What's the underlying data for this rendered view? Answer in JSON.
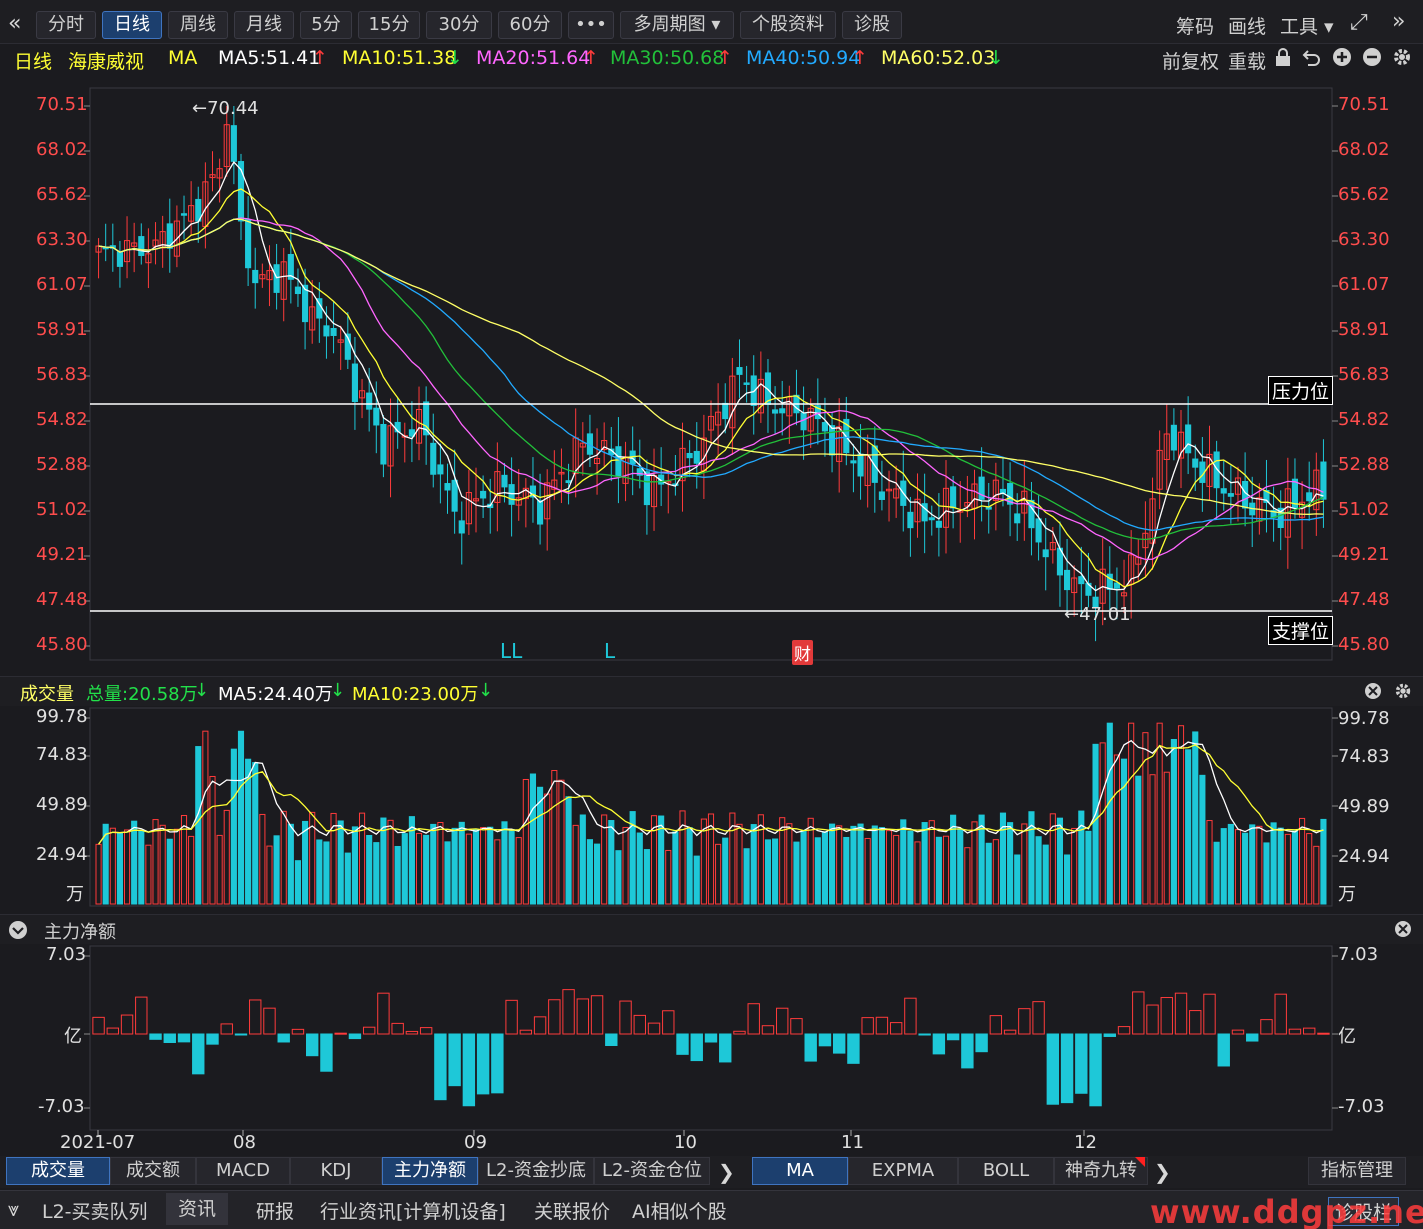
{
  "toolbar": {
    "back_icon": "«",
    "buttons": [
      "分时",
      "日线",
      "周线",
      "月线",
      "5分",
      "15分",
      "30分",
      "60分",
      "•••",
      "多周期图 ▾",
      "个股资料",
      "诊股"
    ],
    "active_index": 1,
    "right": [
      "筹码",
      "画线",
      "工具 ▾"
    ],
    "expand_icon": "⤢",
    "forward_icon": "»"
  },
  "ma_legend": {
    "period": "日线",
    "name": "海康威视",
    "ma": "MA",
    "items": [
      {
        "label": "MA5:51.41",
        "arrow": "↑",
        "arrow_color": "#ff3b3b",
        "color": "#ffffff"
      },
      {
        "label": "MA10:51.38",
        "arrow": "↓",
        "arrow_color": "#22e04a",
        "color": "#ffff33"
      },
      {
        "label": "MA20:51.64",
        "arrow": "↑",
        "arrow_color": "#ff3b3b",
        "color": "#ff66ff"
      },
      {
        "label": "MA30:50.68",
        "arrow": "↑",
        "arrow_color": "#ff3b3b",
        "color": "#22c03a"
      },
      {
        "label": "MA40:50.94",
        "arrow": "↑",
        "arrow_color": "#ff3b3b",
        "color": "#22aaff"
      },
      {
        "label": "MA60:52.03",
        "arrow": "↓",
        "arrow_color": "#22e04a",
        "color": "#ffff66"
      }
    ],
    "right": [
      "前复权",
      "重载"
    ]
  },
  "price_panel": {
    "y_ticks": [
      "70.51",
      "68.02",
      "65.62",
      "63.30",
      "61.07",
      "58.91",
      "56.83",
      "54.82",
      "52.88",
      "51.02",
      "49.21",
      "47.48",
      "45.80"
    ],
    "high_label": "←70.44",
    "low_label": "←47.01",
    "resistance_label": "压力位",
    "support_label": "支撑位",
    "markers": [
      "LL",
      "L"
    ],
    "finance_marker": "财"
  },
  "volume_panel": {
    "title": "成交量",
    "total": "总量:20.58万",
    "total_arrow": "↓",
    "ma5": "MA5:24.40万",
    "ma5_arrow": "↓",
    "ma10": "MA10:23.00万",
    "ma10_arrow": "↓",
    "y_ticks": [
      "99.78",
      "74.83",
      "49.89",
      "24.94"
    ],
    "unit": "万"
  },
  "flow_panel": {
    "title": "主力净额",
    "y_ticks": [
      "7.03",
      "亿",
      "-7.03"
    ]
  },
  "x_axis": [
    "2021-07",
    "08",
    "09",
    "10",
    "11",
    "12"
  ],
  "indicator_tabs": [
    "成交量",
    "成交额",
    "MACD",
    "KDJ",
    "主力净额",
    "L2-资金抄底",
    "L2-资金仓位"
  ],
  "indicator_active": [
    0,
    4
  ],
  "overlay_tabs": [
    "MA",
    "EXPMA",
    "BOLL",
    "神奇九转"
  ],
  "overlay_active": 0,
  "indicator_manage": "指标管理",
  "bottom_bar": [
    "L2-买卖队列",
    "资讯",
    "研报",
    "行业资讯[计算机设备]",
    "关联报价",
    "AI相似个股"
  ],
  "bottom_active": 1,
  "bottom_right": "诊股栏",
  "watermark": "www.ddgpz.net",
  "colors": {
    "up": "#ff3b3b",
    "down": "#1ec8d8",
    "bg": "#1b1b1f"
  }
}
